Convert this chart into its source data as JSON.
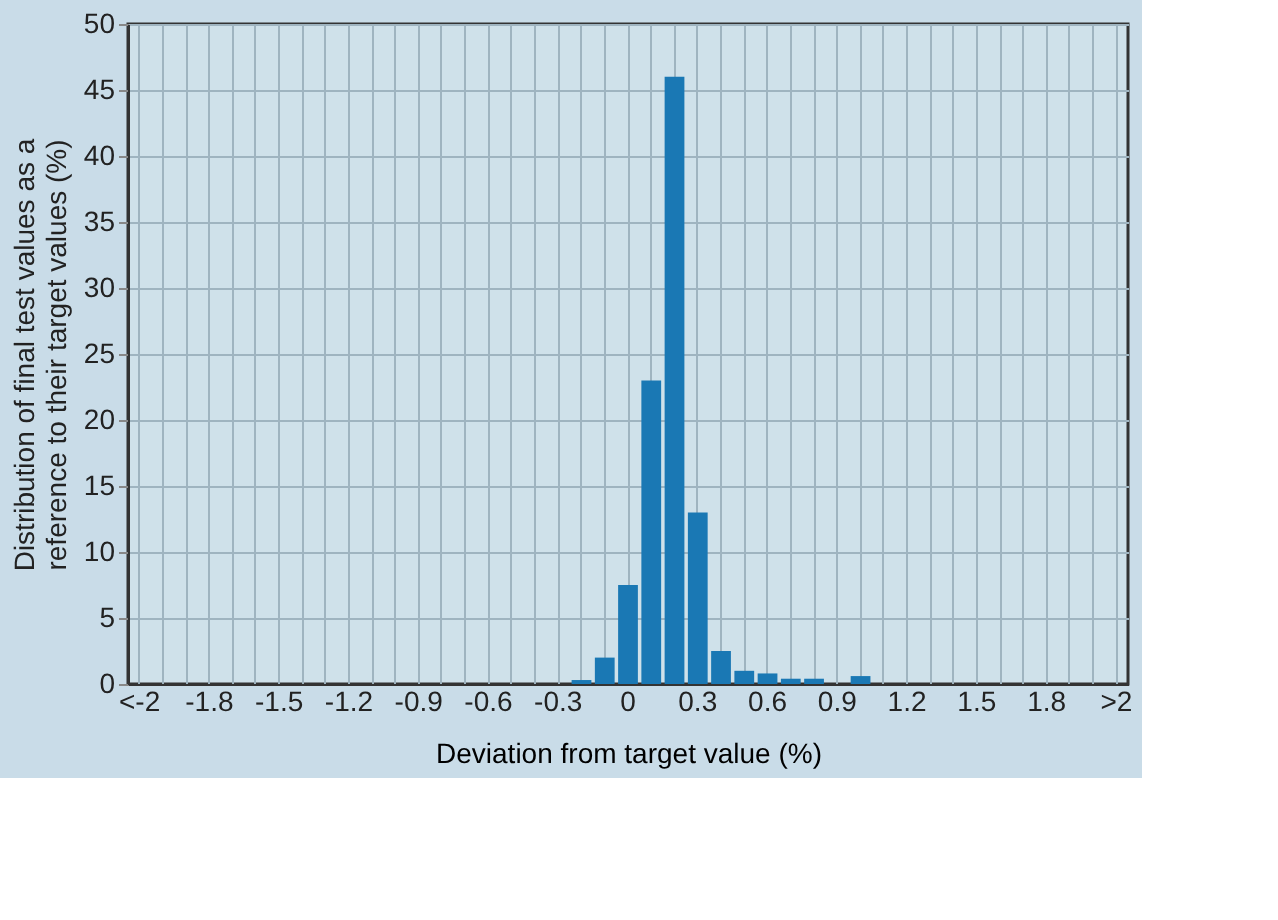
{
  "chart_data": {
    "type": "bar",
    "xlabel": "Deviation from target value (%)",
    "ylabel": "Distribution of final test values as a\nreference to their target values (%)",
    "categories": [
      "<-2",
      null,
      null,
      "-1.8",
      null,
      null,
      "-1.5",
      null,
      null,
      "-1.2",
      null,
      null,
      "-0.9",
      null,
      null,
      "-0.6",
      null,
      null,
      "-0.3",
      null,
      null,
      "0",
      null,
      null,
      "0.3",
      null,
      null,
      "0.6",
      null,
      null,
      "0.9",
      null,
      null,
      "1.2",
      null,
      null,
      "1.5",
      null,
      null,
      "1.8",
      null,
      null,
      ">2"
    ],
    "values": [
      0,
      0,
      0,
      0,
      0,
      0,
      0,
      0,
      0,
      0,
      0,
      0,
      0,
      0,
      0,
      0,
      0,
      0,
      0,
      0.3,
      2,
      7.5,
      23,
      46,
      13,
      2.5,
      1,
      0.8,
      0.4,
      0.4,
      0,
      0.6,
      0,
      0,
      0,
      0,
      0,
      0,
      0,
      0,
      0,
      0,
      0
    ],
    "color": "#1a78b4",
    "ylim": [
      0,
      50
    ],
    "yticks": [
      0,
      5,
      10,
      15,
      20,
      25,
      30,
      35,
      40,
      45,
      50
    ],
    "grid": true
  }
}
